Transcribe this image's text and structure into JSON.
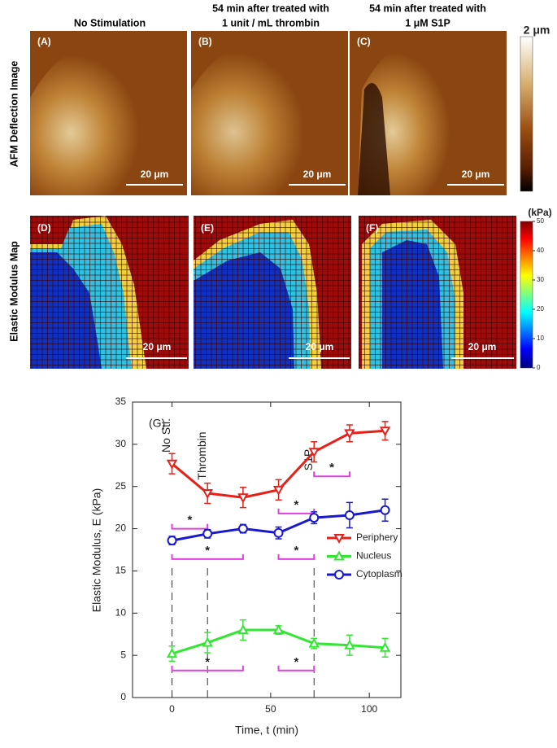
{
  "figure": {
    "row_labels": [
      "AFM Deflection Image",
      "Elastic Modulus Map"
    ],
    "columns": [
      {
        "title": [
          "No Stimulation"
        ]
      },
      {
        "title": [
          "54 min after treated with",
          "1 unit / mL thrombin"
        ]
      },
      {
        "title": [
          "54 min after treated with",
          "1 μM S1P"
        ]
      }
    ],
    "afm_panels": [
      "(A)",
      "(B)",
      "(C)"
    ],
    "map_panels": [
      "(D)",
      "(E)",
      "(F)"
    ],
    "scale_bar": "20 μm",
    "afm_colorbar": "2 μm",
    "modulus_colorbar": {
      "title": "(kPa)",
      "range": [
        0,
        50
      ],
      "ticks": [
        0,
        10,
        20,
        30,
        40,
        50
      ]
    }
  },
  "chart_data": {
    "type": "line",
    "panel_label": "(G)",
    "xlabel": "Time, t (min)",
    "ylabel": "Elastic Modulus, E (kPa)",
    "x": [
      0,
      18,
      36,
      54,
      72,
      90,
      108
    ],
    "xlim": [
      -20,
      116
    ],
    "xticks": [
      0,
      50,
      100
    ],
    "ylim": [
      0,
      35
    ],
    "yticks": [
      0,
      5,
      10,
      15,
      20,
      25,
      30,
      35
    ],
    "legend": "right",
    "series": [
      {
        "name": "Periphery",
        "color": "#e8201a",
        "marker": "triangle-down",
        "values": [
          27.7,
          24.2,
          23.7,
          24.6,
          29.1,
          31.3,
          31.6
        ],
        "errors": [
          1.2,
          1.2,
          1.2,
          1.2,
          1.2,
          1.0,
          1.1
        ]
      },
      {
        "name": "Nucleus",
        "color": "#33e633",
        "marker": "triangle-up",
        "values": [
          5.2,
          6.5,
          8.0,
          8.0,
          6.4,
          6.2,
          5.9
        ],
        "errors": [
          0.9,
          1.2,
          1.2,
          0.5,
          0.6,
          1.2,
          1.1
        ]
      },
      {
        "name": "Cytoplasm",
        "color": "#1a1acc",
        "marker": "circle",
        "values": [
          18.6,
          19.4,
          20.0,
          19.5,
          21.3,
          21.6,
          22.2
        ],
        "errors": [
          0.5,
          0.5,
          0.5,
          0.7,
          0.7,
          1.5,
          1.3
        ]
      }
    ],
    "events": [
      {
        "x": 0,
        "label": "No Sti."
      },
      {
        "x": 18,
        "label": "Thrombin"
      },
      {
        "x": 72,
        "label": "S1P"
      }
    ],
    "brackets": [
      {
        "x": [
          0,
          18
        ],
        "y": 20.0,
        "label": "*"
      },
      {
        "x": [
          54,
          72
        ],
        "y": 21.8,
        "label": "*"
      },
      {
        "x": [
          72,
          90
        ],
        "y": 26.2,
        "label": "*"
      },
      {
        "x": [
          0,
          36
        ],
        "y": 16.4,
        "label": "*"
      },
      {
        "x": [
          54,
          72
        ],
        "y": 16.4,
        "label": "*"
      },
      {
        "x": [
          0,
          36
        ],
        "y": 3.2,
        "label": "*"
      },
      {
        "x": [
          54,
          72
        ],
        "y": 3.2,
        "label": "*"
      }
    ]
  }
}
